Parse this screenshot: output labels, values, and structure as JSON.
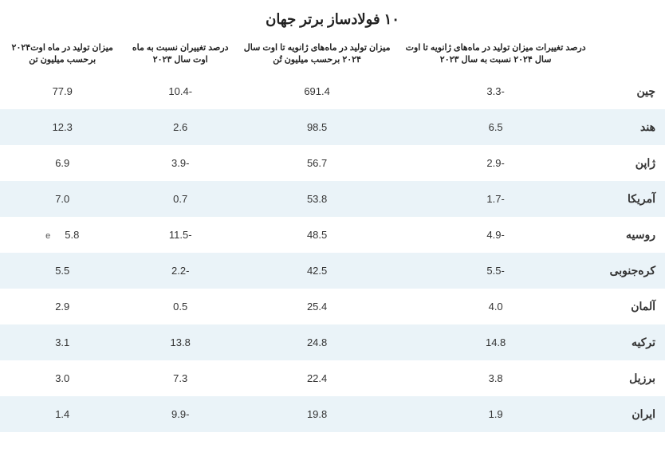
{
  "title": "۱۰ فولادساز برتر جهان",
  "columns": {
    "country": "",
    "ytdChange": "درصد تغییرات میزان تولید در ماه‌های ژانویه تا اوت سال ۲۰۲۴ نسبت به سال ۲۰۲۳",
    "ytdProd": "میزان تولید در ماه‌های ژانویه تا اوت سال ۲۰۲۴ برحسب میلیون تُن",
    "momChange": "درصد تغییران نسبت به ماه اوت سال ۲۰۲۳",
    "augProd": "میزان تولید در ماه اوت۲۰۲۴ برحسب میلیون تن"
  },
  "rows": [
    {
      "country": "چین",
      "ytdChange": "-3.3",
      "ytdProd": "691.4",
      "momChange": "-10.4",
      "augProd": "77.9",
      "augNote": ""
    },
    {
      "country": "هند",
      "ytdChange": "6.5",
      "ytdProd": "98.5",
      "momChange": "2.6",
      "augProd": "12.3",
      "augNote": ""
    },
    {
      "country": "ژاپن",
      "ytdChange": "-2.9",
      "ytdProd": "56.7",
      "momChange": "-3.9",
      "augProd": "6.9",
      "augNote": ""
    },
    {
      "country": "آمریکا",
      "ytdChange": "-1.7",
      "ytdProd": "53.8",
      "momChange": "0.7",
      "augProd": "7.0",
      "augNote": ""
    },
    {
      "country": "روسیه",
      "ytdChange": "-4.9",
      "ytdProd": "48.5",
      "momChange": "-11.5",
      "augProd": "5.8",
      "augNote": "e"
    },
    {
      "country": "کره‌جنوبی",
      "ytdChange": "-5.5",
      "ytdProd": "42.5",
      "momChange": "-2.2",
      "augProd": "5.5",
      "augNote": ""
    },
    {
      "country": "آلمان",
      "ytdChange": "4.0",
      "ytdProd": "25.4",
      "momChange": "0.5",
      "augProd": "2.9",
      "augNote": ""
    },
    {
      "country": "ترکیه",
      "ytdChange": "14.8",
      "ytdProd": "24.8",
      "momChange": "13.8",
      "augProd": "3.1",
      "augNote": ""
    },
    {
      "country": "برزیل",
      "ytdChange": "3.8",
      "ytdProd": "22.4",
      "momChange": "7.3",
      "augProd": "3.0",
      "augNote": ""
    },
    {
      "country": "ایران",
      "ytdChange": "1.9",
      "ytdProd": "19.8",
      "momChange": "-9.9",
      "augProd": "1.4",
      "augNote": ""
    }
  ],
  "style": {
    "evenRowBg": "#eaf3f8",
    "oddRowBg": "#ffffff"
  }
}
